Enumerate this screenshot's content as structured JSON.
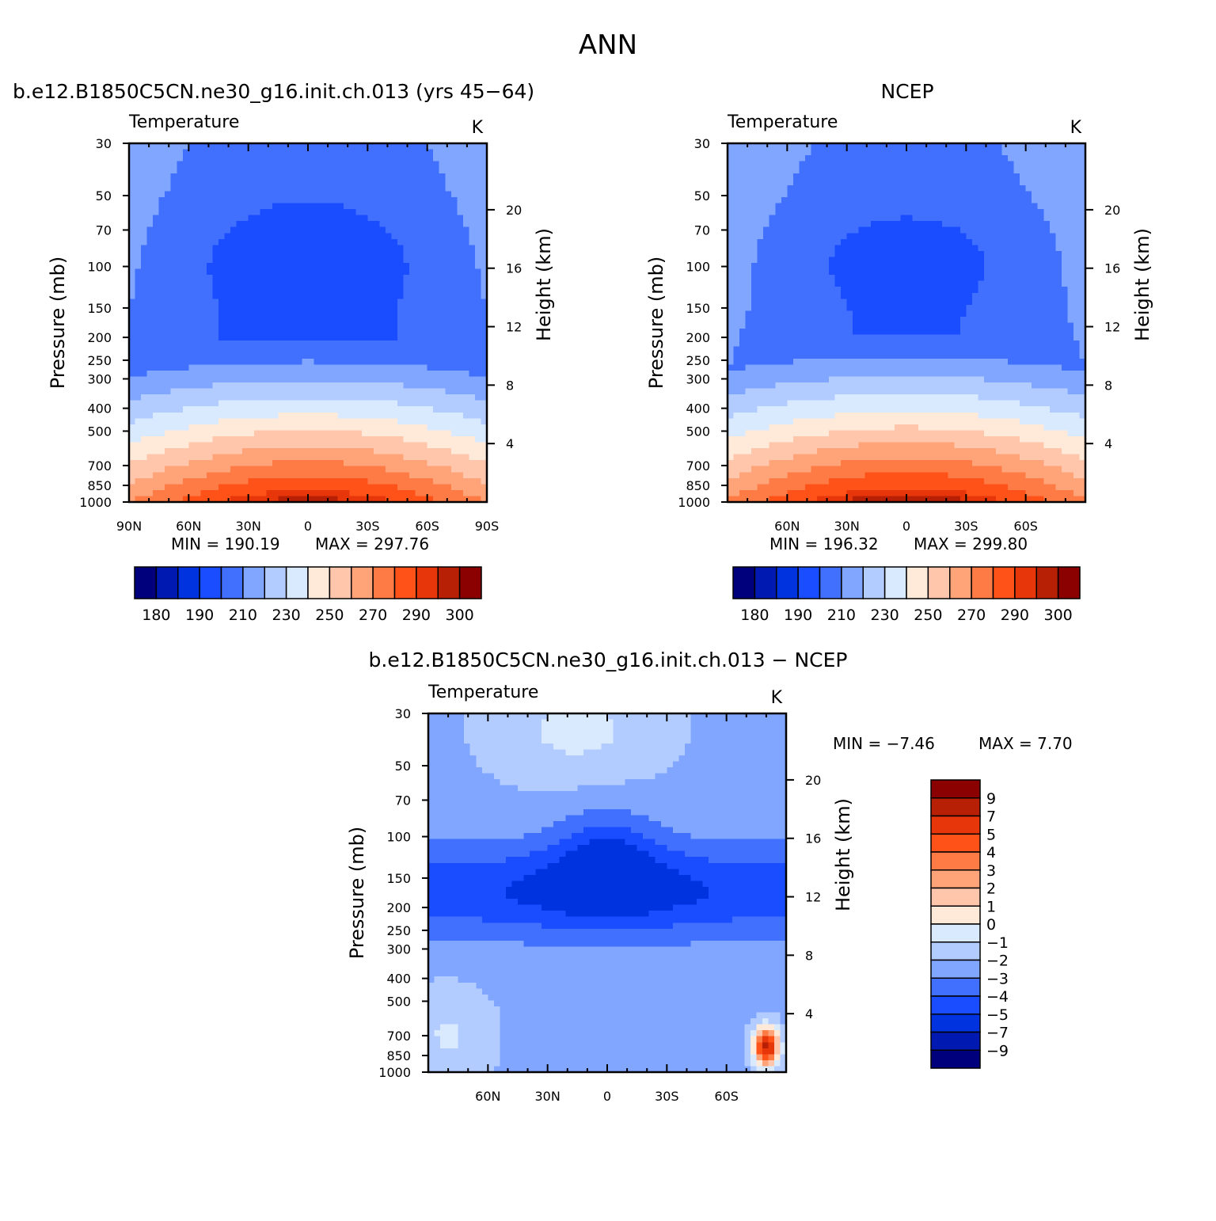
{
  "figure": {
    "title": "ANN",
    "left_title": "b.e12.B1850C5CN.ne30_g16.init.ch.013 (yrs 45−64)",
    "right_title": "NCEP",
    "diff_title": "b.e12.B1850C5CN.ne30_g16.init.ch.013 − NCEP"
  },
  "chart_data": [
    {
      "id": "model",
      "type": "heatmap",
      "title": "Temperature",
      "units": "K",
      "ylabel": "Pressure (mb)",
      "y2label": "Height (km)",
      "x_ticks": [
        "90N",
        "60N",
        "30N",
        "0",
        "30S",
        "60S",
        "90S"
      ],
      "x_tick_values": [
        90,
        60,
        30,
        0,
        -30,
        -60,
        -90
      ],
      "y_ticks": [
        30,
        50,
        70,
        100,
        150,
        200,
        250,
        300,
        400,
        500,
        700,
        850,
        1000
      ],
      "y2_ticks": [
        20,
        16,
        12,
        8,
        4
      ],
      "ylim": [
        1000,
        30
      ],
      "xlim": [
        90,
        -90
      ],
      "min_label": "MIN =  190.19",
      "max_label": "MAX =  297.76",
      "min": 190.19,
      "max": 297.76,
      "colorbar_labels": [
        "180",
        "190",
        "210",
        "230",
        "250",
        "270",
        "290",
        "300"
      ],
      "levels": [
        180,
        185,
        190,
        200,
        210,
        220,
        230,
        240,
        250,
        260,
        270,
        280,
        290,
        295,
        300
      ]
    },
    {
      "id": "ncep",
      "type": "heatmap",
      "title": "Temperature",
      "units": "K",
      "ylabel": "Pressure (mb)",
      "y2label": "Height (km)",
      "x_ticks": [
        "60N",
        "30N",
        "0",
        "30S",
        "60S"
      ],
      "x_tick_values": [
        60,
        30,
        0,
        -30,
        -60
      ],
      "y_ticks": [
        30,
        50,
        70,
        100,
        150,
        200,
        250,
        300,
        400,
        500,
        700,
        850,
        1000
      ],
      "y2_ticks": [
        20,
        16,
        12,
        8,
        4
      ],
      "ylim": [
        1000,
        30
      ],
      "xlim": [
        90,
        -90
      ],
      "min_label": "MIN =  196.32",
      "max_label": "MAX =  299.80",
      "min": 196.32,
      "max": 299.8,
      "colorbar_labels": [
        "180",
        "190",
        "210",
        "230",
        "250",
        "270",
        "290",
        "300"
      ],
      "levels": [
        180,
        185,
        190,
        200,
        210,
        220,
        230,
        240,
        250,
        260,
        270,
        280,
        290,
        295,
        300
      ]
    },
    {
      "id": "diff",
      "type": "heatmap",
      "title": "Temperature",
      "units": "K",
      "ylabel": "Pressure (mb)",
      "y2label": "Height (km)",
      "x_ticks": [
        "60N",
        "30N",
        "0",
        "30S",
        "60S"
      ],
      "x_tick_values": [
        60,
        30,
        0,
        -30,
        -60
      ],
      "y_ticks": [
        30,
        50,
        70,
        100,
        150,
        200,
        250,
        300,
        400,
        500,
        700,
        850,
        1000
      ],
      "y2_ticks": [
        20,
        16,
        12,
        8,
        4
      ],
      "ylim": [
        1000,
        30
      ],
      "xlim": [
        90,
        -90
      ],
      "min_label": "MIN =   −7.46",
      "max_label": "MAX =    7.70",
      "min": -7.46,
      "max": 7.7,
      "colorbar_labels": [
        "9",
        "7",
        "5",
        "4",
        "3",
        "2",
        "1",
        "0",
        "−1",
        "−2",
        "−3",
        "−4",
        "−5",
        "−7",
        "−9"
      ],
      "levels": [
        -9,
        -7,
        -5,
        -4,
        -3,
        -2,
        -1,
        0,
        1,
        2,
        3,
        4,
        5,
        7,
        9
      ]
    }
  ],
  "colors": {
    "palette": [
      "#00007d",
      "#0019b0",
      "#0033e0",
      "#1a4dff",
      "#4170ff",
      "#80a6ff",
      "#b3ccff",
      "#d9eaff",
      "#ffe9d9",
      "#ffc6ab",
      "#ffa478",
      "#ff7b46",
      "#ff5219",
      "#e6360a",
      "#b82005",
      "#8b0000"
    ]
  }
}
